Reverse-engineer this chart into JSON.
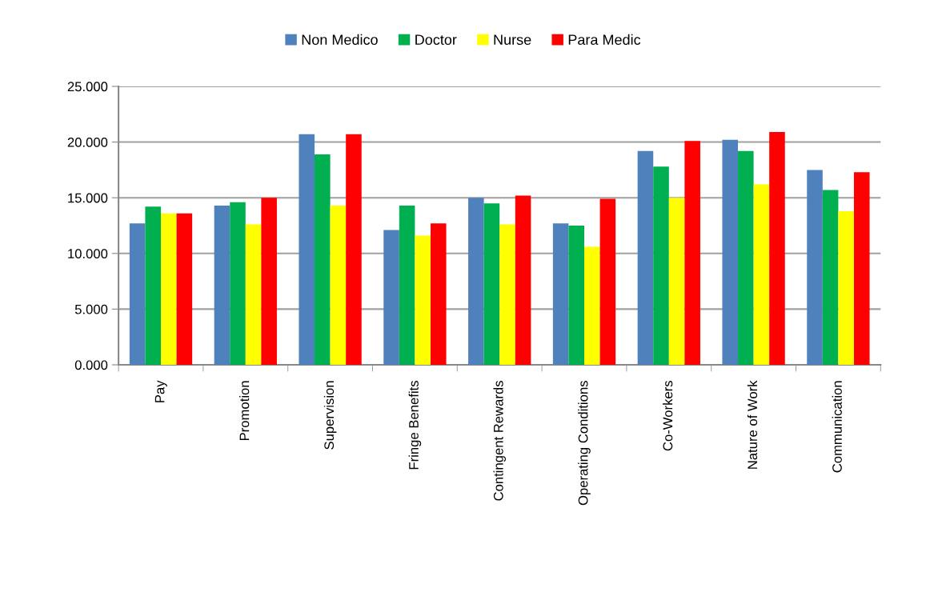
{
  "chart_data": {
    "type": "bar",
    "categories": [
      "Pay",
      "Promotion",
      "Supervision",
      "Fringe Benefits",
      "Contingent Rewards",
      "Operating Conditions",
      "Co-Workers",
      "Nature of Work",
      "Communication"
    ],
    "series": [
      {
        "name": "Non Medico",
        "color": "#4f81bd",
        "values": [
          12.7,
          14.3,
          20.7,
          12.1,
          15.0,
          12.7,
          19.2,
          20.2,
          17.5
        ]
      },
      {
        "name": "Doctor",
        "color": "#00b050",
        "values": [
          14.2,
          14.6,
          18.9,
          14.3,
          14.5,
          12.5,
          17.8,
          19.2,
          15.7
        ]
      },
      {
        "name": "Nurse",
        "color": "#ffff00",
        "values": [
          13.6,
          12.6,
          14.3,
          11.6,
          12.6,
          10.6,
          15.0,
          16.2,
          13.8
        ]
      },
      {
        "name": "Para Medic",
        "color": "#ff0000",
        "values": [
          13.6,
          15.0,
          20.7,
          12.7,
          15.2,
          14.9,
          20.1,
          20.9,
          17.3
        ]
      }
    ],
    "ylim": [
      0,
      25
    ],
    "yticks": [
      {
        "value": 0,
        "label": "0.000"
      },
      {
        "value": 5,
        "label": "5.000"
      },
      {
        "value": 10,
        "label": "10.000"
      },
      {
        "value": 15,
        "label": "15.000"
      },
      {
        "value": 20,
        "label": "20.000"
      },
      {
        "value": 25,
        "label": "25.000"
      }
    ],
    "grid": "y",
    "legend": "top"
  }
}
